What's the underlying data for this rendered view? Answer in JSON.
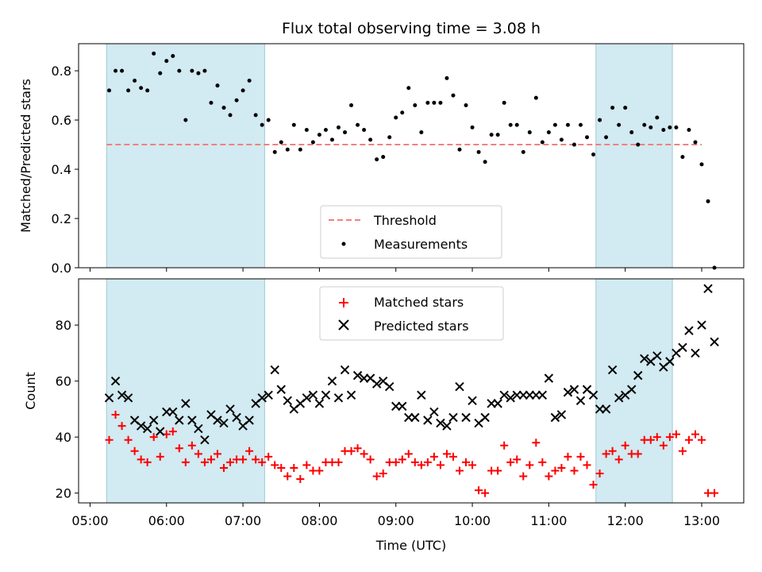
{
  "chart_data": {
    "title": "Flux total observing time = 3.08 h",
    "xlabel": "Time (UTC)",
    "x_ticks": [
      "05:00",
      "06:00",
      "07:00",
      "08:00",
      "09:00",
      "10:00",
      "11:00",
      "12:00",
      "13:00"
    ],
    "x_range": [
      "04:51",
      "13:33"
    ],
    "x_step_minutes": 5,
    "x_start": "05:15",
    "shaded_intervals": [
      [
        "05:13",
        "07:17"
      ],
      [
        "11:37",
        "12:37"
      ]
    ],
    "shade_color": "#add8e6",
    "panels": [
      {
        "type": "scatter",
        "ylabel": "Matched/Predicted stars",
        "ylim": [
          0.0,
          0.91
        ],
        "y_ticks": [
          0.0,
          0.2,
          0.4,
          0.6,
          0.8
        ],
        "threshold": {
          "name": "Threshold",
          "y": 0.5,
          "x_range": [
            "05:13",
            "13:00"
          ],
          "color": "#f08080"
        },
        "legend_placement": "lower-center",
        "series": [
          {
            "name": "Measurements",
            "marker": "dot",
            "color": "#000000",
            "values": [
              0.72,
              0.8,
              0.8,
              0.72,
              0.76,
              0.73,
              0.72,
              0.87,
              0.79,
              0.84,
              0.86,
              0.8,
              0.6,
              0.8,
              0.79,
              0.8,
              0.67,
              0.74,
              0.65,
              0.62,
              0.68,
              0.72,
              0.76,
              0.62,
              0.58,
              0.6,
              0.47,
              0.51,
              0.48,
              0.58,
              0.48,
              0.56,
              0.51,
              0.54,
              0.56,
              0.52,
              0.57,
              0.55,
              0.66,
              0.58,
              0.56,
              0.52,
              0.44,
              0.45,
              0.53,
              0.61,
              0.63,
              0.73,
              0.66,
              0.55,
              0.67,
              0.67,
              0.67,
              0.77,
              0.7,
              0.48,
              0.66,
              0.57,
              0.47,
              0.43,
              0.54,
              0.54,
              0.67,
              0.58,
              0.58,
              0.47,
              0.55,
              0.69,
              0.51,
              0.55,
              0.58,
              0.52,
              0.58,
              0.5,
              0.58,
              0.53,
              0.46,
              0.6,
              0.53,
              0.65,
              0.58,
              0.65,
              0.55,
              0.5,
              0.58,
              0.57,
              0.61,
              0.56,
              0.57,
              0.57,
              0.45,
              0.56,
              0.51,
              0.42,
              0.27,
              0.0
            ]
          }
        ]
      },
      {
        "type": "scatter",
        "ylabel": "Count",
        "ylim": [
          16.5,
          96.5
        ],
        "y_ticks": [
          20,
          40,
          60,
          80
        ],
        "legend_placement": "upper-center",
        "series": [
          {
            "name": "Matched stars",
            "marker": "plus",
            "color": "#ff0000",
            "values": [
              39,
              48,
              44,
              39,
              35,
              32,
              31,
              40,
              33,
              41,
              42,
              36,
              31,
              37,
              34,
              31,
              32,
              34,
              29,
              31,
              32,
              32,
              35,
              32,
              31,
              33,
              30,
              29,
              26,
              29,
              25,
              30,
              28,
              28,
              31,
              31,
              31,
              35,
              35,
              36,
              34,
              32,
              26,
              27,
              31,
              31,
              32,
              34,
              31,
              30,
              31,
              33,
              30,
              34,
              33,
              28,
              31,
              30,
              21,
              20,
              28,
              28,
              37,
              31,
              32,
              26,
              30,
              38,
              31,
              26,
              28,
              29,
              33,
              28,
              33,
              30,
              23,
              27,
              34,
              35,
              32,
              37,
              34,
              34,
              39,
              39,
              40,
              37,
              40,
              41,
              35,
              39,
              41,
              39,
              20,
              20
            ]
          },
          {
            "name": "Predicted stars",
            "marker": "x",
            "color": "#000000",
            "values": [
              54,
              60,
              55,
              54,
              46,
              44,
              43,
              46,
              42,
              49,
              49,
              46,
              52,
              46,
              43,
              39,
              48,
              46,
              45,
              50,
              47,
              44,
              46,
              52,
              54,
              55,
              64,
              57,
              53,
              50,
              52,
              54,
              55,
              52,
              55,
              60,
              54,
              64,
              55,
              62,
              61,
              61,
              59,
              60,
              58,
              51,
              51,
              47,
              47,
              55,
              46,
              49,
              45,
              44,
              47,
              58,
              47,
              53,
              45,
              47,
              52,
              52,
              55,
              54,
              55,
              55,
              55,
              55,
              55,
              61,
              47,
              48,
              56,
              57,
              53,
              57,
              55,
              50,
              50,
              64,
              54,
              55,
              57,
              62,
              68,
              67,
              69,
              65,
              67,
              70,
              72,
              78,
              70,
              80,
              93,
              74
            ]
          }
        ]
      }
    ],
    "legend": [
      "Threshold",
      "Measurements",
      "Matched stars",
      "Predicted stars"
    ],
    "grid": false
  }
}
